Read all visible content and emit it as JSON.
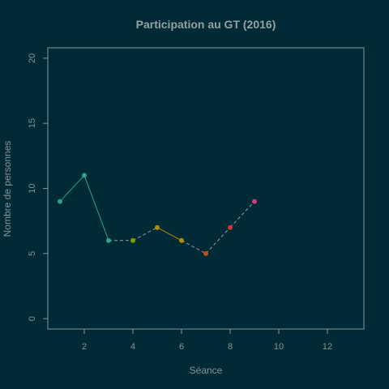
{
  "chart_data": {
    "type": "line",
    "title": "Participation au GT (2016)",
    "xlabel": "Séance",
    "ylabel": "Nombre de personnes",
    "xlim": [
      0.5,
      13.5
    ],
    "ylim": [
      -0.8,
      20.8
    ],
    "xticks": [
      2,
      4,
      6,
      8,
      10,
      12
    ],
    "yticks": [
      0,
      5,
      10,
      15,
      20
    ],
    "grid": false,
    "points": [
      {
        "x": 1,
        "y": 9,
        "color": "#2aa198"
      },
      {
        "x": 2,
        "y": 11,
        "color": "#2aa198"
      },
      {
        "x": 3,
        "y": 6,
        "color": "#2aa198"
      },
      {
        "x": 4,
        "y": 6,
        "color": "#859900"
      },
      {
        "x": 5,
        "y": 7,
        "color": "#b58900"
      },
      {
        "x": 6,
        "y": 6,
        "color": "#b58900"
      },
      {
        "x": 7,
        "y": 5,
        "color": "#cb4b16"
      },
      {
        "x": 8,
        "y": 7,
        "color": "#dc322f"
      },
      {
        "x": 9,
        "y": 9,
        "color": "#d33682"
      }
    ],
    "segments": [
      {
        "from": 1,
        "to": 2,
        "style": "solid",
        "color": "#2aa198"
      },
      {
        "from": 2,
        "to": 3,
        "style": "solid",
        "color": "#2aa198"
      },
      {
        "from": 3,
        "to": 4,
        "style": "dashed",
        "color": "#93a1a1"
      },
      {
        "from": 4,
        "to": 5,
        "style": "dashed",
        "color": "#93a1a1"
      },
      {
        "from": 5,
        "to": 6,
        "style": "solid",
        "color": "#b58900"
      },
      {
        "from": 6,
        "to": 7,
        "style": "dashed",
        "color": "#93a1a1"
      },
      {
        "from": 7,
        "to": 8,
        "style": "dashed",
        "color": "#93a1a1"
      },
      {
        "from": 8,
        "to": 9,
        "style": "dashed",
        "color": "#93a1a1"
      }
    ]
  }
}
